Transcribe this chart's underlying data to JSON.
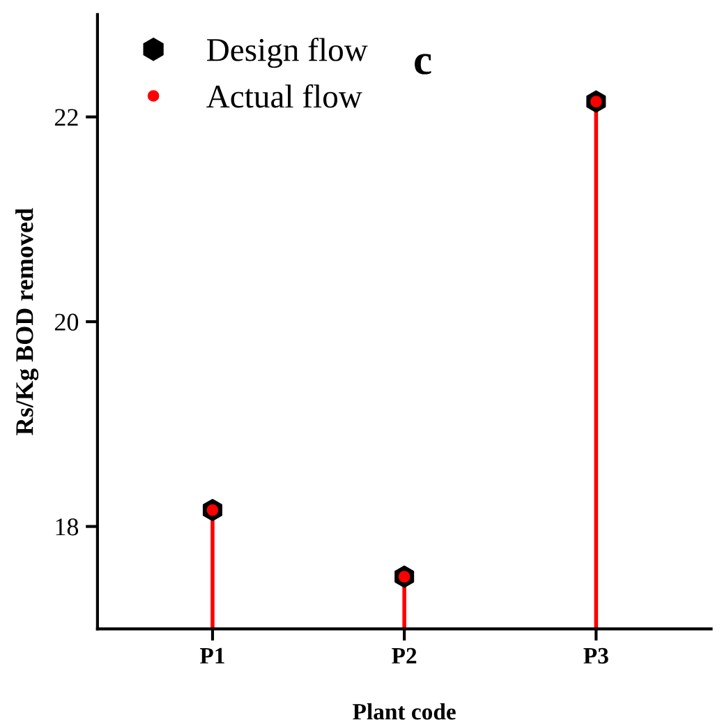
{
  "chart_data": {
    "type": "lollipop",
    "xlabel": "Plant code",
    "ylabel": "Rs/Kg BOD removed",
    "annotations": [
      "c"
    ],
    "categories": [
      "P1",
      "P2",
      "P3"
    ],
    "series": [
      {
        "name": "Design flow",
        "type": "scatter",
        "color": "#000000",
        "values": [
          18.16,
          17.51,
          22.15
        ]
      },
      {
        "name": "Actual flow",
        "marker": "circle",
        "color": "#ff0000",
        "values": [
          18.16,
          17.51,
          22.15
        ]
      }
    ],
    "ylim": [
      17,
      23
    ],
    "yticks": [
      18,
      20,
      22
    ],
    "grid": false,
    "legend": "top left"
  }
}
